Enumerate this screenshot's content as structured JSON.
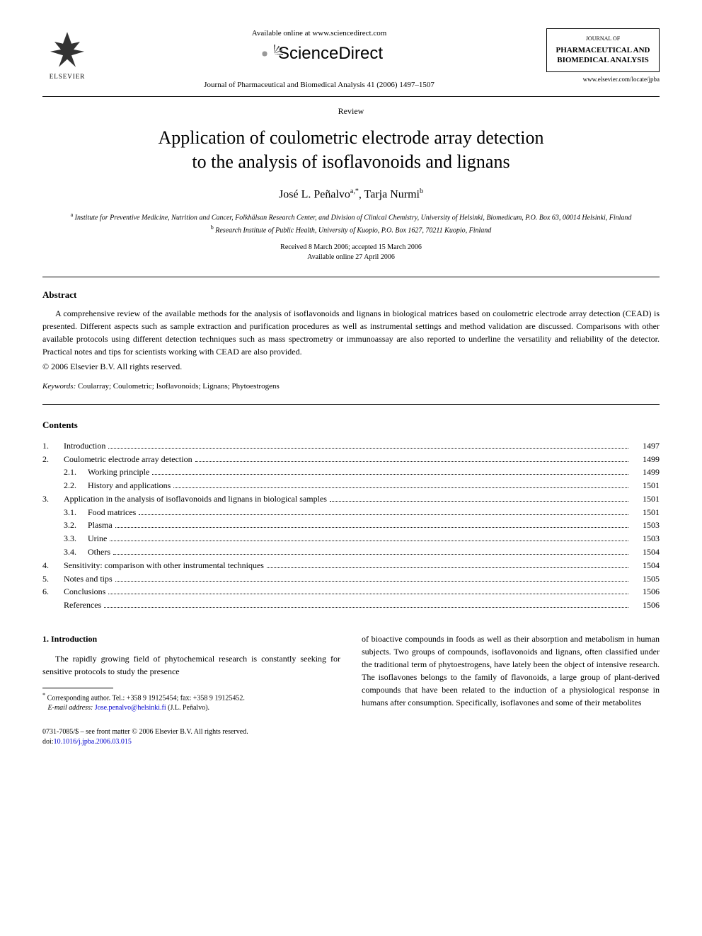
{
  "header": {
    "elsevier": "ELSEVIER",
    "available_online": "Available online at www.sciencedirect.com",
    "sciencedirect": "ScienceDirect",
    "journal_ref": "Journal of Pharmaceutical and Biomedical Analysis 41 (2006) 1497–1507",
    "journal_box_top": "JOURNAL OF",
    "journal_box_name": "PHARMACEUTICAL AND BIOMEDICAL ANALYSIS",
    "journal_url": "www.elsevier.com/locate/jpba"
  },
  "article": {
    "type": "Review",
    "title_line1": "Application of coulometric electrode array detection",
    "title_line2": "to the analysis of isoflavonoids and lignans",
    "authors_html": "José L. Peñalvo",
    "author1_sup": "a,",
    "author1_star": "*",
    "author2": ", Tarja Nurmi",
    "author2_sup": "b",
    "affil_a_sup": "a",
    "affil_a": " Institute for Preventive Medicine, Nutrition and Cancer, Folkhälsan Research Center, and Division of Clinical Chemistry, University of Helsinki, Biomedicum, P.O. Box 63, 00014 Helsinki, Finland",
    "affil_b_sup": "b",
    "affil_b": " Research Institute of Public Health, University of Kuopio, P.O. Box 1627, 70211 Kuopio, Finland",
    "received": "Received 8 March 2006; accepted 15 March 2006",
    "available": "Available online 27 April 2006"
  },
  "abstract": {
    "heading": "Abstract",
    "text": "A comprehensive review of the available methods for the analysis of isoflavonoids and lignans in biological matrices based on coulometric electrode array detection (CEAD) is presented. Different aspects such as sample extraction and purification procedures as well as instrumental settings and method validation are discussed. Comparisons with other available protocols using different detection techniques such as mass spectrometry or immunoassay are also reported to underline the versatility and reliability of the detector. Practical notes and tips for scientists working with CEAD are also provided.",
    "copyright": "© 2006 Elsevier B.V. All rights reserved.",
    "keywords_label": "Keywords:",
    "keywords": "  Coularray; Coulometric; Isoflavonoids; Lignans; Phytoestrogens"
  },
  "contents": {
    "heading": "Contents",
    "items": [
      {
        "num": "1.",
        "label": "Introduction",
        "page": "1497",
        "level": 0
      },
      {
        "num": "2.",
        "label": "Coulometric electrode array detection",
        "page": "1499",
        "level": 0
      },
      {
        "num": "2.1.",
        "label": "Working principle",
        "page": "1499",
        "level": 1
      },
      {
        "num": "2.2.",
        "label": "History and applications",
        "page": "1501",
        "level": 1
      },
      {
        "num": "3.",
        "label": "Application in the analysis of isoflavonoids and lignans in biological samples",
        "page": "1501",
        "level": 0
      },
      {
        "num": "3.1.",
        "label": "Food matrices",
        "page": "1501",
        "level": 1
      },
      {
        "num": "3.2.",
        "label": "Plasma",
        "page": "1503",
        "level": 1
      },
      {
        "num": "3.3.",
        "label": "Urine",
        "page": "1503",
        "level": 1
      },
      {
        "num": "3.4.",
        "label": "Others",
        "page": "1504",
        "level": 1
      },
      {
        "num": "4.",
        "label": "Sensitivity: comparison with other instrumental techniques",
        "page": "1504",
        "level": 0
      },
      {
        "num": "5.",
        "label": "Notes and tips",
        "page": "1505",
        "level": 0
      },
      {
        "num": "6.",
        "label": "Conclusions",
        "page": "1506",
        "level": 0
      },
      {
        "num": "",
        "label": "References",
        "page": "1506",
        "level": 0
      }
    ]
  },
  "body": {
    "section1_heading": "1.  Introduction",
    "col1_text": "The rapidly growing field of phytochemical research is constantly seeking for sensitive protocols to study the presence",
    "col2_text": "of bioactive compounds in foods as well as their absorption and metabolism in human subjects. Two groups of compounds, isoflavonoids and lignans, often classified under the traditional term of phytoestrogens, have lately been the object of intensive research. The isoflavones belongs to the family of flavonoids, a large group of plant-derived compounds that have been related to the induction of a physiological response in humans after consumption. Specifically, isoflavones and some of their metabolites"
  },
  "footnote": {
    "star": "*",
    "corr": " Corresponding author. Tel.: +358 9 19125454; fax: +358 9 19125452.",
    "email_label": "E-mail address:",
    "email": " Jose.penalvo@helsinki.fi",
    "email_after": " (J.L. Peñalvo)."
  },
  "footer": {
    "issn": "0731-7085/$ – see front matter © 2006 Elsevier B.V. All rights reserved.",
    "doi_label": "doi:",
    "doi": "10.1016/j.jpba.2006.03.015"
  },
  "colors": {
    "text": "#000000",
    "link": "#0000cc",
    "background": "#ffffff"
  }
}
